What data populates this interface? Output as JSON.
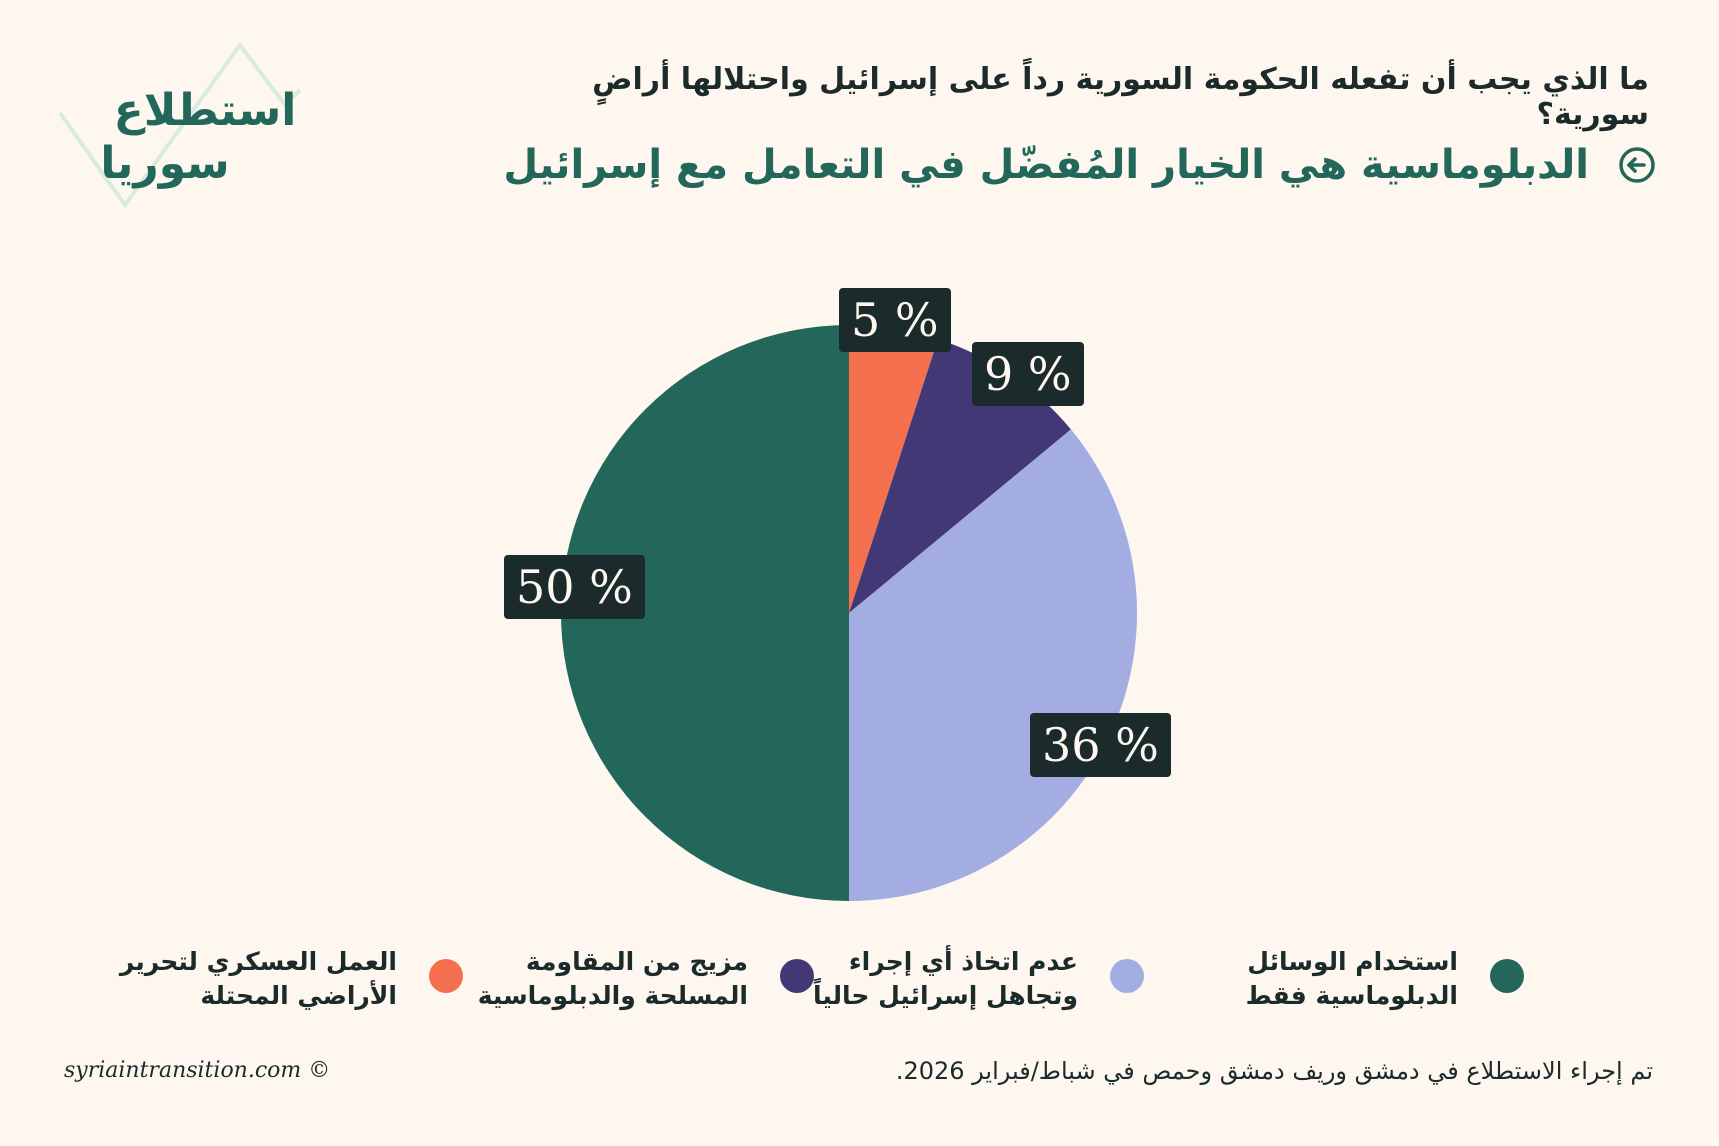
{
  "brand": {
    "logo_line1": "استطلاع",
    "logo_line2": "سوريا",
    "logo_color": "#22675a",
    "logo_accent": "#d7ecdf"
  },
  "header": {
    "question": "ما الذي يجب أن تفعله الحكومة السورية رداً على إسرائيل واحتلالها أراضٍ سورية؟",
    "answer": "الدبلوماسية هي الخيار المُفضّل في التعامل مع إسرائيل",
    "answer_icon": "arrow-circle-left-icon"
  },
  "chart_data": {
    "type": "pie",
    "title": "",
    "start_angle_deg": 0,
    "direction": "clockwise",
    "slices": [
      {
        "label": "العمل العسكري لتحرير الأراضي المحتلة",
        "value": 5,
        "display": "5 %",
        "color": "#f4704f"
      },
      {
        "label": "مزيج من المقاومة المسلحة والدبلوماسية",
        "value": 9,
        "display": "9 %",
        "color": "#433876"
      },
      {
        "label": "عدم اتخاذ أي إجراء وتجاهل إسرائيل حالياً",
        "value": 36,
        "display": "36 %",
        "color": "#a3ade2"
      },
      {
        "label": "استخدام الوسائل الدبلوماسية فقط",
        "value": 50,
        "display": "50 %",
        "color": "#22675a"
      }
    ],
    "legend_placement": "bottom"
  },
  "legend": [
    {
      "label": "استخدام الوسائل\nالدبلوماسية فقط",
      "color": "#22675a"
    },
    {
      "label": "عدم اتخاذ أي إجراء\nوتجاهل إسرائيل حالياً",
      "color": "#a3ade2"
    },
    {
      "label": "مزيج من المقاومة\nالمسلحة والدبلوماسية",
      "color": "#433876"
    },
    {
      "label": "العمل العسكري لتحرير\nالأراضي المحتلة",
      "color": "#f4704f"
    }
  ],
  "footer": {
    "copyright": "syriaintransition.com ©",
    "note": "تم إجراء الاستطلاع في دمشق وريف دمشق وحمص في شباط/فبراير 2026."
  }
}
